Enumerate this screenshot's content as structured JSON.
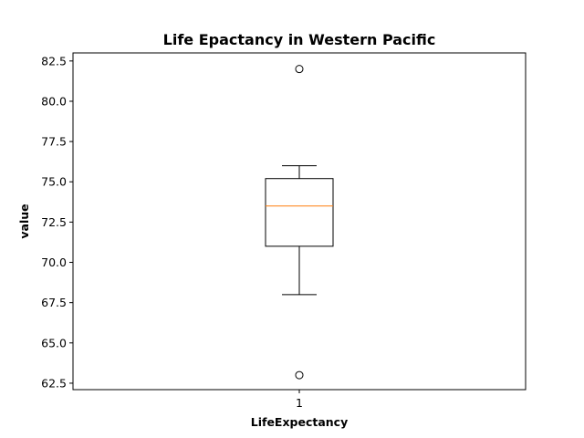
{
  "chart_data": {
    "type": "box",
    "title": "Life Epactancy in Western Pacific",
    "xlabel": "LifeExpectancy",
    "ylabel": "value",
    "ylim": [
      62.1,
      83.0
    ],
    "yticks": [
      "62.5",
      "65.0",
      "67.5",
      "70.0",
      "72.5",
      "75.0",
      "77.5",
      "80.0",
      "82.5"
    ],
    "ytick_values": [
      62.5,
      65.0,
      67.5,
      70.0,
      72.5,
      75.0,
      77.5,
      80.0,
      82.5
    ],
    "xticks": [
      "1"
    ],
    "grid": false,
    "boxes": [
      {
        "position": 1,
        "whisker_low": 68.0,
        "q1": 71.0,
        "median": 73.5,
        "q3": 75.2,
        "whisker_high": 76.0,
        "outliers": [
          82.0,
          63.0
        ]
      }
    ],
    "colors": {
      "box": "#000000",
      "median": "#ff7f0e",
      "outlier_edge": "#000000"
    }
  }
}
